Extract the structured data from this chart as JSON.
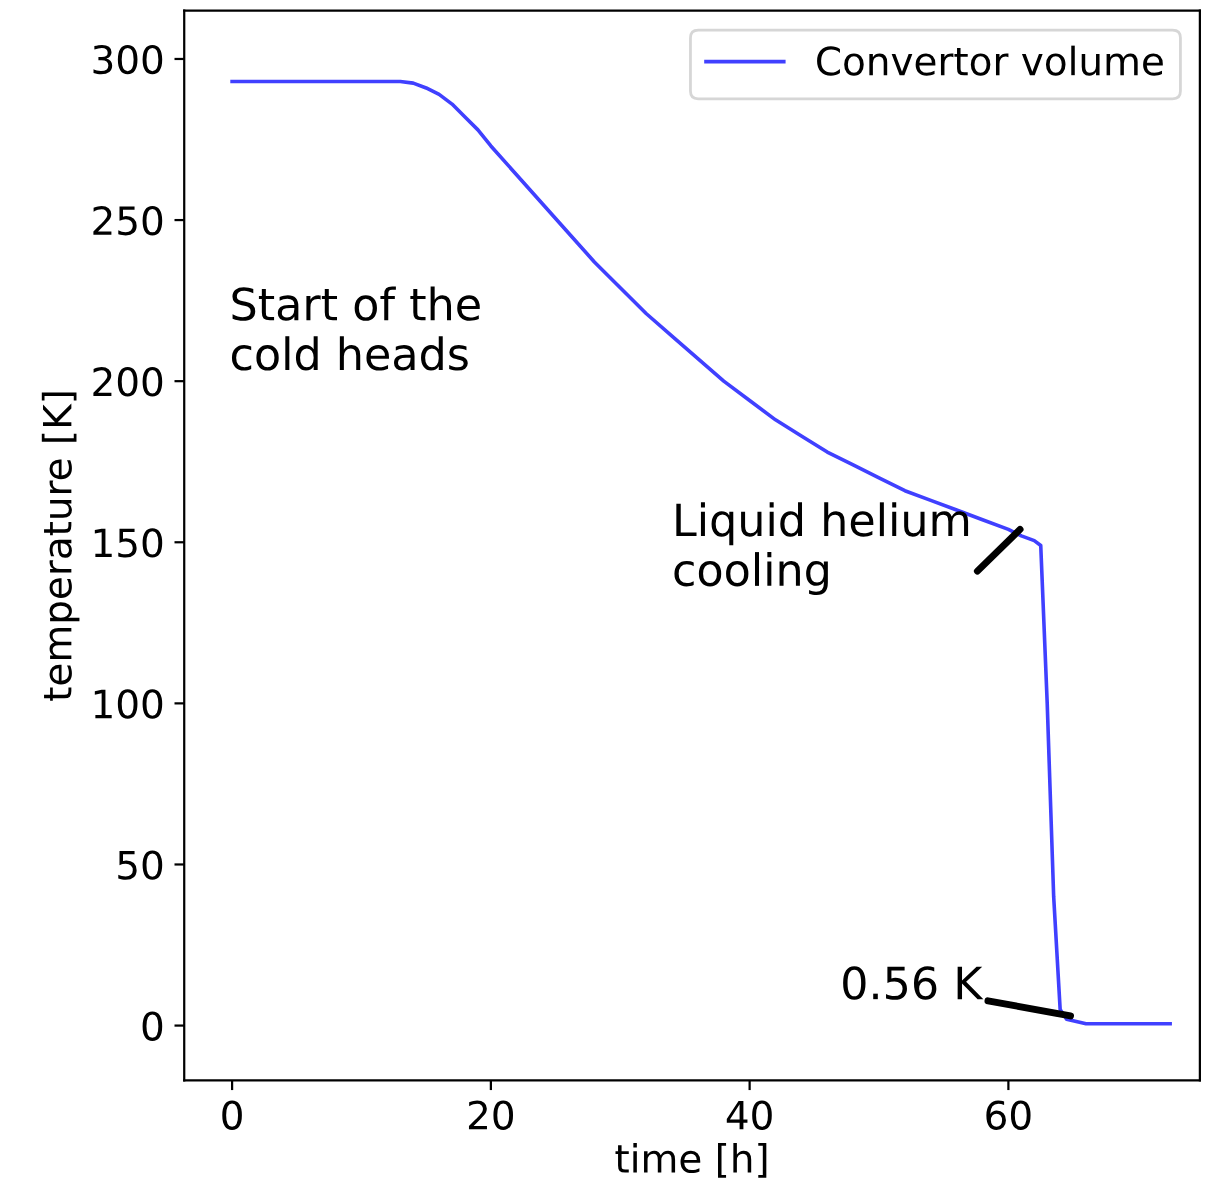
{
  "chart_data": {
    "type": "line",
    "xlabel": "time [h]",
    "ylabel": "temperature [K]",
    "x": [
      0,
      5,
      10,
      13,
      14,
      15,
      16,
      17,
      18,
      19,
      20,
      22,
      24,
      26,
      28,
      30,
      32,
      34,
      36,
      38,
      40,
      42,
      44,
      46,
      48,
      50,
      52,
      54,
      56,
      58,
      60,
      61,
      62,
      62.5,
      63,
      63.5,
      64,
      64.5,
      65,
      66,
      68,
      70,
      72.5
    ],
    "series": [
      {
        "name": "Convertor volume",
        "color": "#4040ff",
        "values": [
          293,
          293,
          293,
          293,
          292.5,
          291,
          289,
          286,
          282,
          278,
          273,
          264,
          255,
          246,
          237,
          229,
          221,
          214,
          207,
          200,
          194,
          188,
          183,
          178,
          174,
          170,
          166,
          163,
          160,
          157,
          154,
          152,
          150.5,
          149,
          100,
          40,
          5,
          2,
          1.5,
          0.56,
          0.56,
          0.56,
          0.56
        ]
      }
    ],
    "xlim": [
      -3.7,
      74.8
    ],
    "ylim": [
      -17,
      315
    ],
    "xticks": [
      0,
      20,
      40,
      60
    ],
    "yticks": [
      0,
      50,
      100,
      150,
      200,
      250,
      300
    ],
    "grid": false,
    "legend": "top right",
    "marker": "none",
    "line_style": "solid",
    "annotations": [
      "Start of the\ncold heads",
      {
        "text": "Liquid helium\ncooling",
        "x": 60.9,
        "y": 154
      },
      {
        "text": "0.56 K",
        "x": 64.8,
        "y": 3
      }
    ]
  }
}
